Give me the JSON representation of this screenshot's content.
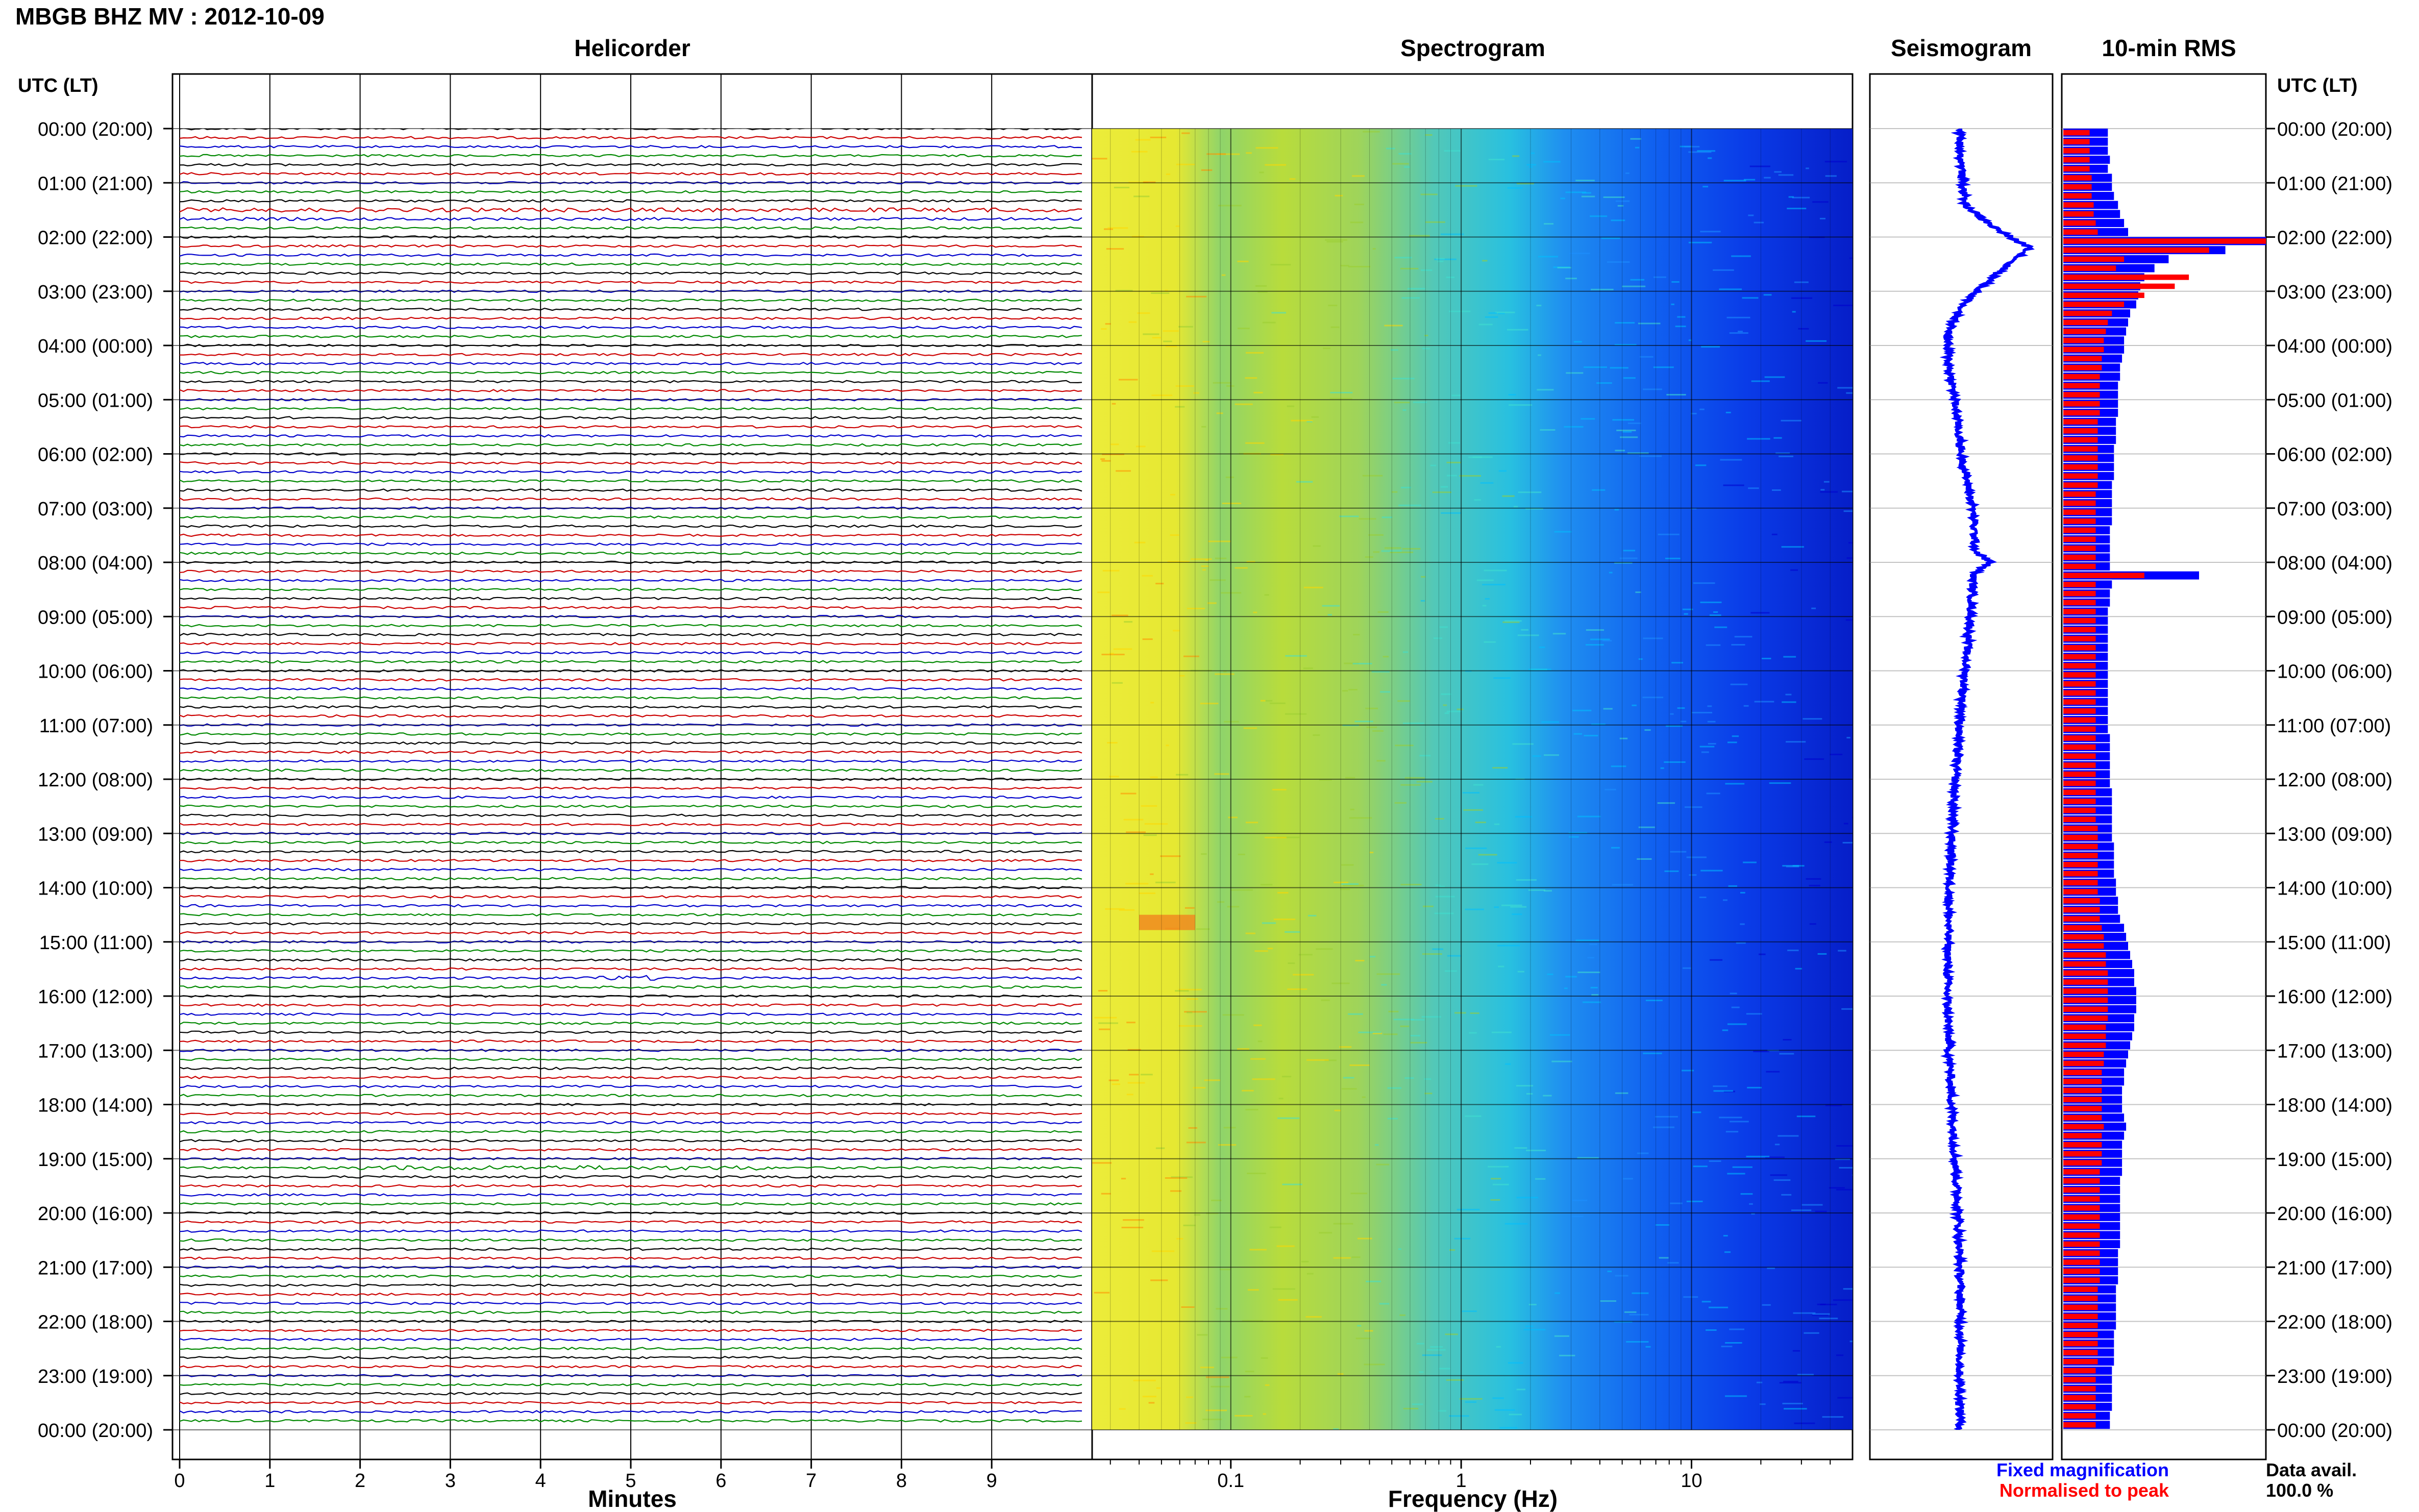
{
  "header": {
    "title": "MBGB BHZ MV : 2012-10-09"
  },
  "panels": {
    "helicorder": "Helicorder",
    "spectrogram": "Spectrogram",
    "seismogram": "Seismogram",
    "rms": "10-min RMS"
  },
  "axis_caption": {
    "left": "UTC (LT)",
    "right": "UTC (LT)"
  },
  "hour_labels": [
    "00:00 (20:00)",
    "01:00 (21:00)",
    "02:00 (22:00)",
    "03:00 (23:00)",
    "04:00 (00:00)",
    "05:00 (01:00)",
    "06:00 (02:00)",
    "07:00 (03:00)",
    "08:00 (04:00)",
    "09:00 (05:00)",
    "10:00 (06:00)",
    "11:00 (07:00)",
    "12:00 (08:00)",
    "13:00 (09:00)",
    "14:00 (10:00)",
    "15:00 (11:00)",
    "16:00 (12:00)",
    "17:00 (13:00)",
    "18:00 (14:00)",
    "19:00 (15:00)",
    "20:00 (16:00)",
    "21:00 (17:00)",
    "22:00 (18:00)",
    "23:00 (19:00)",
    "00:00 (20:00)"
  ],
  "legend": {
    "fixed": "Fixed magnification",
    "normalised": "Normalised to peak",
    "data_avail_label": "Data avail.",
    "data_avail_value": "100.0 %"
  },
  "colors": {
    "fixed": "#0000ff",
    "normalised": "#ff0000",
    "trace_cycle": [
      "#000000",
      "#cc0000",
      "#0000cc",
      "#008800"
    ],
    "spectrogram_scale": [
      "#00008b",
      "#0000ff",
      "#1e90ff",
      "#00ced1",
      "#66cdaa",
      "#9acd32",
      "#ffff00",
      "#ffa500"
    ]
  },
  "chart_data": [
    {
      "type": "line",
      "panel": "Helicorder",
      "xlabel": "Minutes",
      "x_ticks": [
        "0",
        "1",
        "2",
        "3",
        "4",
        "5",
        "6",
        "7",
        "8",
        "9"
      ],
      "xlim": [
        0,
        10
      ],
      "rows": 144,
      "row_minutes": 10,
      "events": [
        {
          "row": 9,
          "start_min": 0.0,
          "end_min": 10.0,
          "amp": 1.8,
          "color": "#cc0000"
        },
        {
          "row": 10,
          "start_min": 0.0,
          "end_min": 10.0,
          "amp": 1.3,
          "color": "#000000"
        },
        {
          "row": 94,
          "start_min": 4.5,
          "end_min": 5.3,
          "amp": 2.2,
          "color": "#008800"
        },
        {
          "row": 115,
          "start_min": 2.0,
          "end_min": 6.5,
          "amp": 2.0,
          "color": "#000000"
        }
      ]
    },
    {
      "type": "heatmap",
      "panel": "Spectrogram",
      "xlabel": "Frequency (Hz)",
      "xscale": "log",
      "x_ticks": [
        "0.1",
        "1",
        "10"
      ],
      "xlim": [
        0.025,
        50
      ],
      "ylim_hours": [
        0,
        24
      ]
    },
    {
      "type": "line",
      "panel": "Seismogram",
      "xlim": [
        -1,
        1
      ],
      "y": [
        0,
        0.5,
        1.0,
        1.4,
        1.7,
        2.0,
        2.2,
        2.4,
        2.7,
        3.0,
        3.3,
        3.6,
        3.9,
        4.5,
        5,
        6,
        7,
        7.8,
        8.0,
        8.2,
        9,
        10,
        11,
        12,
        13,
        14,
        15,
        16,
        17,
        18,
        19,
        20,
        21,
        22,
        23,
        24
      ],
      "x": [
        -0.02,
        -0.01,
        0.02,
        0.05,
        0.3,
        0.62,
        0.9,
        0.7,
        0.45,
        0.2,
        0.0,
        -0.12,
        -0.18,
        -0.15,
        -0.08,
        0.0,
        0.15,
        0.18,
        0.38,
        0.16,
        0.12,
        0.05,
        -0.02,
        -0.08,
        -0.12,
        -0.15,
        -0.17,
        -0.18,
        -0.16,
        -0.12,
        -0.08,
        -0.04,
        -0.02,
        -0.01,
        -0.02,
        -0.01
      ]
    },
    {
      "type": "bar",
      "panel": "10-min RMS",
      "orientation": "horizontal",
      "bins_per_hour": 6,
      "xlim": [
        0,
        1
      ],
      "series": [
        {
          "name": "Fixed magnification",
          "values": [
            0.22,
            0.22,
            0.22,
            0.23,
            0.22,
            0.24,
            0.24,
            0.25,
            0.27,
            0.28,
            0.3,
            0.32,
            1.0,
            0.8,
            0.52,
            0.45,
            0.4,
            0.38,
            0.37,
            0.36,
            0.33,
            0.32,
            0.31,
            0.3,
            0.3,
            0.29,
            0.28,
            0.28,
            0.27,
            0.27,
            0.27,
            0.27,
            0.26,
            0.26,
            0.26,
            0.25,
            0.25,
            0.25,
            0.25,
            0.24,
            0.24,
            0.24,
            0.24,
            0.24,
            0.23,
            0.23,
            0.23,
            0.23,
            0.23,
            0.67,
            0.24,
            0.23,
            0.23,
            0.22,
            0.22,
            0.22,
            0.22,
            0.22,
            0.22,
            0.22,
            0.22,
            0.22,
            0.22,
            0.22,
            0.22,
            0.22,
            0.22,
            0.23,
            0.23,
            0.23,
            0.23,
            0.23,
            0.23,
            0.24,
            0.24,
            0.24,
            0.24,
            0.24,
            0.24,
            0.25,
            0.25,
            0.25,
            0.25,
            0.26,
            0.26,
            0.27,
            0.27,
            0.28,
            0.3,
            0.31,
            0.32,
            0.33,
            0.34,
            0.35,
            0.35,
            0.36,
            0.36,
            0.36,
            0.35,
            0.35,
            0.34,
            0.33,
            0.32,
            0.31,
            0.3,
            0.3,
            0.29,
            0.29,
            0.29,
            0.3,
            0.31,
            0.3,
            0.29,
            0.29,
            0.29,
            0.29,
            0.28,
            0.28,
            0.28,
            0.28,
            0.28,
            0.28,
            0.28,
            0.28,
            0.27,
            0.27,
            0.27,
            0.27,
            0.26,
            0.26,
            0.26,
            0.26,
            0.26,
            0.25,
            0.25,
            0.25,
            0.25,
            0.24,
            0.24,
            0.24,
            0.24,
            0.24,
            0.23,
            0.23
          ]
        },
        {
          "name": "Normalised to peak",
          "values": [
            0.13,
            0.13,
            0.13,
            0.13,
            0.13,
            0.14,
            0.14,
            0.14,
            0.15,
            0.15,
            0.16,
            0.17,
            1.0,
            0.72,
            0.3,
            0.26,
            0.62,
            0.55,
            0.4,
            0.3,
            0.24,
            0.22,
            0.21,
            0.2,
            0.2,
            0.19,
            0.19,
            0.18,
            0.18,
            0.18,
            0.18,
            0.18,
            0.17,
            0.17,
            0.17,
            0.17,
            0.17,
            0.17,
            0.17,
            0.17,
            0.16,
            0.16,
            0.16,
            0.16,
            0.16,
            0.16,
            0.16,
            0.16,
            0.16,
            0.4,
            0.16,
            0.16,
            0.16,
            0.16,
            0.16,
            0.16,
            0.16,
            0.16,
            0.16,
            0.16,
            0.16,
            0.16,
            0.16,
            0.16,
            0.16,
            0.16,
            0.16,
            0.16,
            0.16,
            0.16,
            0.16,
            0.16,
            0.16,
            0.16,
            0.16,
            0.16,
            0.16,
            0.17,
            0.17,
            0.17,
            0.17,
            0.17,
            0.17,
            0.17,
            0.17,
            0.18,
            0.18,
            0.18,
            0.19,
            0.2,
            0.2,
            0.21,
            0.21,
            0.22,
            0.22,
            0.22,
            0.22,
            0.22,
            0.22,
            0.21,
            0.21,
            0.21,
            0.2,
            0.2,
            0.19,
            0.19,
            0.19,
            0.19,
            0.19,
            0.19,
            0.2,
            0.19,
            0.19,
            0.19,
            0.19,
            0.18,
            0.18,
            0.18,
            0.18,
            0.18,
            0.18,
            0.18,
            0.18,
            0.18,
            0.18,
            0.18,
            0.18,
            0.18,
            0.17,
            0.17,
            0.17,
            0.17,
            0.17,
            0.17,
            0.17,
            0.17,
            0.17,
            0.16,
            0.16,
            0.16,
            0.16,
            0.16,
            0.16,
            0.16
          ]
        }
      ]
    }
  ]
}
